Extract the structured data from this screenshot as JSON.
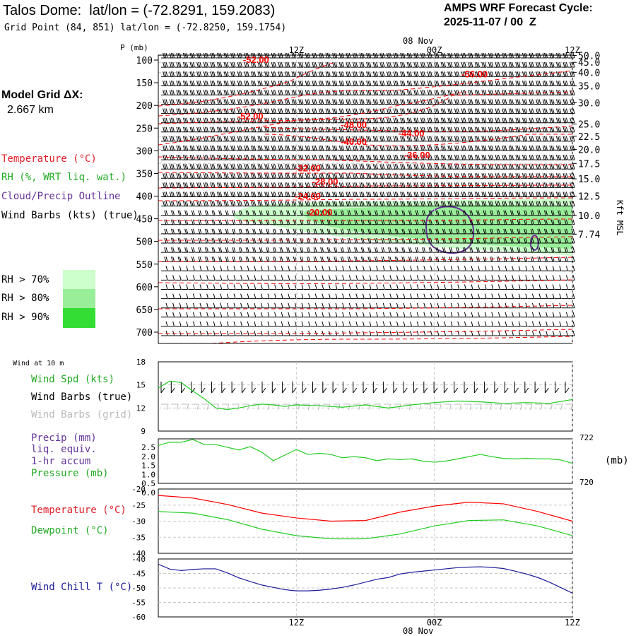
{
  "header": {
    "title": "Talos Dome:  lat/lon = (-72.8291, 159.2083)",
    "grid_point": "Grid Point (84, 851) lat/lon = (-72.8250, 159.1754)",
    "cycle_label": "AMPS WRF Forecast Cycle:",
    "cycle_value": "2025-11-07 / 00  Z",
    "model_grid_label": "Model Grid ΔX:",
    "model_grid_value": "2.667 km"
  },
  "legend": {
    "temperature": "Temperature (°C)",
    "rh": "RH (%, WRT liq. wat.)",
    "cloud": "Cloud/Precip Outline",
    "wind_barbs": "Wind Barbs (kts) (true)",
    "rh_levels": [
      "RH > 70%",
      "RH > 80%",
      "RH > 90%"
    ]
  },
  "colors": {
    "temperature": "#ff0000",
    "rh": "#22cc22",
    "cloud": "#663399",
    "wind": "#000000",
    "wind_grid": "#bbbbbb",
    "dewpoint": "#22cc22",
    "windchill": "#1a1a99",
    "pressure": "#22cc22",
    "rh70": "#ccffcc",
    "rh80": "#99ee99",
    "rh90": "#33dd33"
  },
  "time_axis": {
    "top_date": "08 Nov",
    "bottom_date": "08 Nov",
    "tick_labels": [
      "12Z",
      "00Z",
      "12Z"
    ],
    "range_hours": [
      0,
      36
    ],
    "tick_hours": [
      12,
      24,
      36
    ]
  },
  "chart_data": [
    {
      "name": "cross-section",
      "type": "contour",
      "y_label": "P (mb)",
      "y_ticks": [
        100,
        150,
        200,
        250,
        300,
        350,
        400,
        450,
        500,
        550,
        600,
        650,
        700
      ],
      "height_label": "Kft MSL",
      "height_ticks": [
        "50.0",
        "45.0",
        "40.0",
        "35.0",
        "30.0",
        "25.0",
        "22.5",
        "20.0",
        "17.5",
        "15.0",
        "12.5",
        "10.0",
        "7.74"
      ],
      "height_tick_pressures": [
        90,
        105,
        127,
        157,
        194,
        241,
        268,
        297,
        328,
        362,
        400,
        443,
        484
      ],
      "temperature_labels": [
        {
          "text": "-52.00",
          "hour": 8.5,
          "p": 100
        },
        {
          "text": "-56.00",
          "hour": 27.5,
          "p": 132
        },
        {
          "text": "-52.00",
          "hour": 8,
          "p": 225
        },
        {
          "text": "-48.00",
          "hour": 17,
          "p": 243
        },
        {
          "text": "-44.00",
          "hour": 22,
          "p": 262
        },
        {
          "text": "-40.00",
          "hour": 17,
          "p": 281
        },
        {
          "text": "-36.00",
          "hour": 22.5,
          "p": 310
        },
        {
          "text": "-32.00",
          "hour": 13,
          "p": 339
        },
        {
          "text": "-28.00",
          "hour": 14.5,
          "p": 369
        },
        {
          "text": "-24.00",
          "hour": 13,
          "p": 401
        },
        {
          "text": "-20.00",
          "hour": 14,
          "p": 437
        }
      ]
    },
    {
      "name": "wind-10m",
      "type": "line",
      "title": "Wind at 10 m",
      "series_labels": [
        "Wind Spd (kts)",
        "Wind Barbs (true)",
        "Wind Barbs (grid)"
      ],
      "ylim": [
        9,
        18
      ],
      "y_ticks": [
        9,
        12,
        15,
        18
      ],
      "x": [
        0,
        1,
        2,
        3,
        4,
        5,
        6,
        7,
        8,
        9,
        10,
        11,
        12,
        14,
        16,
        18,
        20,
        22,
        24,
        26,
        28,
        30,
        32,
        34,
        36
      ],
      "values": [
        14.6,
        15.5,
        15.3,
        14.2,
        13.2,
        12.0,
        11.8,
        12.0,
        12.3,
        12.5,
        12.4,
        12.2,
        12.4,
        12.3,
        12.1,
        12.4,
        12.0,
        12.4,
        12.7,
        12.9,
        12.8,
        12.6,
        12.7,
        12.6,
        13.1
      ]
    },
    {
      "name": "precip-pressure",
      "type": "line",
      "series_labels": [
        "Precip (mm)",
        "liq. equiv.",
        "1-hr accum",
        "Pressure (mb)"
      ],
      "left_ticks": [
        "2.5",
        "2.0",
        "1.5",
        "1.0",
        "0.5",
        "0.0"
      ],
      "right_ticks": [
        "722",
        "720"
      ],
      "right_unit": "(mb)",
      "pressure_ylim": [
        720,
        722
      ],
      "x": [
        0,
        1,
        2,
        3,
        4,
        5,
        6,
        7,
        8,
        9,
        10,
        11,
        12,
        13,
        14,
        15,
        16,
        17,
        18,
        19,
        20,
        21,
        22,
        23,
        24,
        25,
        26,
        27,
        28,
        29,
        30,
        31,
        32,
        33,
        34,
        35,
        36
      ],
      "pressure": [
        721.7,
        721.85,
        721.85,
        721.97,
        721.74,
        721.74,
        721.62,
        721.5,
        721.65,
        721.4,
        721.02,
        721.27,
        721.52,
        721.3,
        721.35,
        721.3,
        721.15,
        721.2,
        721.15,
        721.02,
        721.1,
        721.07,
        721.1,
        721.0,
        720.95,
        721.0,
        721.1,
        721.2,
        721.3,
        721.2,
        721.12,
        721.1,
        721.12,
        721.1,
        721.1,
        721.05,
        720.9
      ]
    },
    {
      "name": "temperature-dewpoint",
      "type": "line",
      "series_labels": [
        "Temperature (°C)",
        "Dewpoint (°C)"
      ],
      "ylim": [
        -40,
        -20
      ],
      "y_ticks": [
        -20,
        -25,
        -30,
        -35,
        -40
      ],
      "x": [
        0,
        3,
        6,
        9,
        12,
        15,
        18,
        21,
        24,
        27,
        30,
        33,
        36
      ],
      "temperature": [
        -22.0,
        -22.8,
        -24.8,
        -27.5,
        -29.0,
        -30.0,
        -29.8,
        -27.2,
        -25.3,
        -24.1,
        -24.6,
        -27.0,
        -30.0
      ],
      "dewpoint": [
        -27.0,
        -27.5,
        -29.5,
        -32.5,
        -34.5,
        -35.5,
        -35.5,
        -34.0,
        -31.5,
        -29.8,
        -29.6,
        -31.5,
        -34.5
      ]
    },
    {
      "name": "wind-chill",
      "type": "line",
      "series_labels": [
        "Wind Chill T (°C)"
      ],
      "ylim": [
        -60,
        -40
      ],
      "y_ticks": [
        -40,
        -45,
        -50,
        -55,
        -60
      ],
      "x": [
        0,
        1,
        2,
        3,
        4,
        5,
        6,
        7,
        8,
        9,
        10,
        11,
        12,
        13,
        14,
        15,
        16,
        17,
        18,
        19,
        20,
        21,
        22,
        23,
        24,
        25,
        26,
        27,
        28,
        29,
        30,
        31,
        32,
        33,
        34,
        35,
        36
      ],
      "values": [
        -41.8,
        -43.5,
        -44.0,
        -43.6,
        -43.4,
        -43.4,
        -44.8,
        -46.5,
        -47.8,
        -49.0,
        -49.8,
        -50.6,
        -51.0,
        -51.0,
        -50.8,
        -50.4,
        -49.8,
        -49.0,
        -48.0,
        -47.0,
        -46.4,
        -45.2,
        -44.6,
        -44.2,
        -43.8,
        -43.4,
        -43.0,
        -42.8,
        -42.7,
        -42.9,
        -43.3,
        -44.2,
        -45.2,
        -46.4,
        -48.0,
        -49.9,
        -51.8
      ]
    }
  ]
}
